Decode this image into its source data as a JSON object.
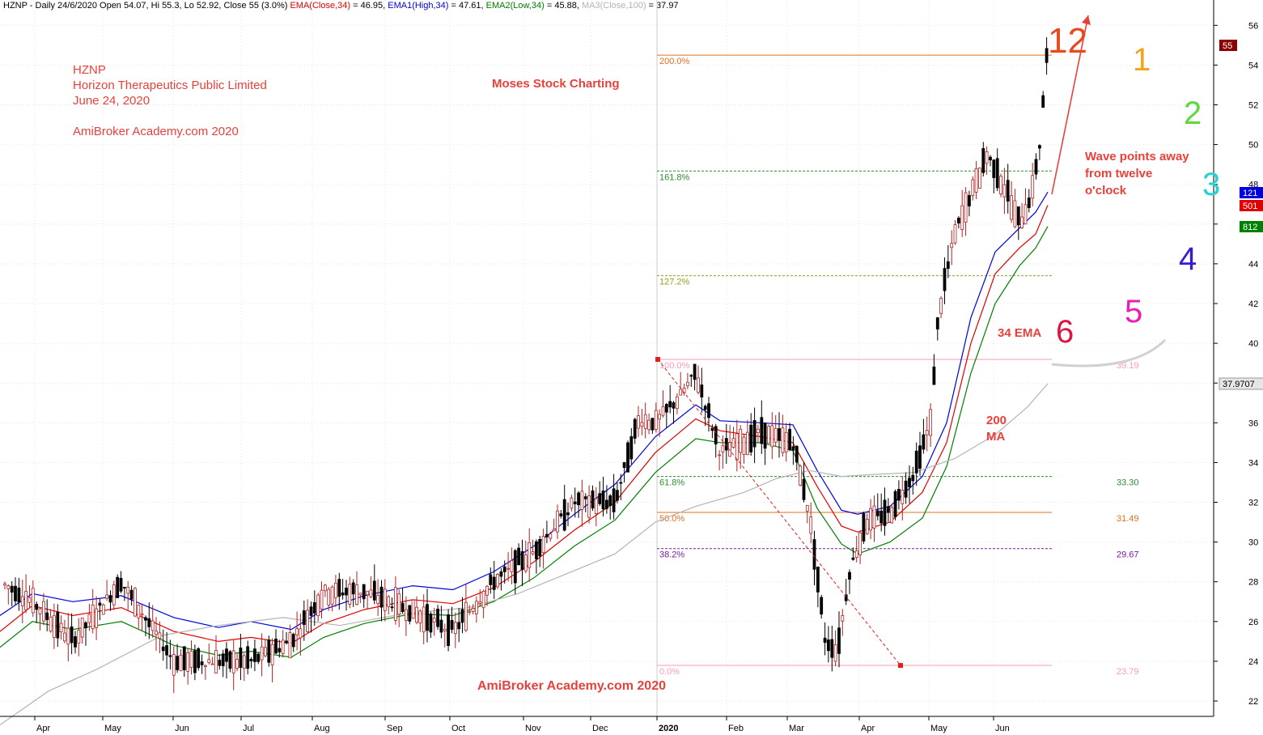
{
  "header": {
    "ticker_info": "HZNP - Daily 24/6/2020 Open 54.07, Hi 55.3, Lo 52.92, Close 55 (3.0%)",
    "ema_close_label": "EMA(Close,34)",
    "ema_close_value": "= 46.95,",
    "ema_high_label": "EMA1(High,34)",
    "ema_high_value": "= 47.61,",
    "ema_low_label": "EMA2(Low,34)",
    "ema_low_value": "= 45.88,",
    "ma_label": "MA3(Close,100)",
    "ma_value": "= 37.97"
  },
  "notes": {
    "ticker": "HZNP",
    "company": "Horizon Therapeutics Public Limited",
    "date": "June 24, 2020",
    "site_top": "AmiBroker Academy.com  2020",
    "brand": "Moses Stock Charting",
    "site_bottom": "AmiBroker Academy.com  2020",
    "wave_line1": "Wave points away",
    "wave_line2": "from twelve",
    "wave_line3": "o'clock",
    "ema_label": "34 EMA",
    "ma_line1": "200",
    "ma_line2": "MA"
  },
  "clock_numbers": [
    "12",
    "1",
    "2",
    "3",
    "4",
    "5",
    "6"
  ],
  "colors": {
    "ema_close": "#e00000",
    "ema_high": "#0000e0",
    "ema_low": "#008000",
    "ma": "#b4b4b4",
    "note_red": "#e8413c",
    "bull_candle": "#b22222",
    "bear_candle": "#000000"
  },
  "chart_data": {
    "type": "candlestick",
    "y_axis": {
      "range": [
        21,
        57
      ],
      "ticks": [
        22,
        24,
        26,
        28,
        30,
        32,
        34,
        36,
        38,
        40,
        42,
        44,
        46,
        48,
        50,
        52,
        54,
        56
      ],
      "position": "right"
    },
    "x_axis": {
      "ticks": [
        "Apr",
        "May",
        "Jun",
        "Jul",
        "Aug",
        "Sep",
        "Oct",
        "Nov",
        "Dec",
        "2020",
        "Feb",
        "Mar",
        "Apr",
        "May",
        "Jun"
      ]
    },
    "price_badges": [
      {
        "label": "55",
        "value": 55,
        "color": "#8b0000"
      },
      {
        "label": "37.9707",
        "value": 37.97,
        "color": "#e6e6e6"
      },
      {
        "label": "121",
        "value": 47.61,
        "color": "#0000e0"
      },
      {
        "label": "501",
        "value": 46.95,
        "color": "#e00000"
      },
      {
        "label": "812",
        "value": 45.88,
        "color": "#008000"
      }
    ],
    "fibonacci": [
      {
        "label": "200.0%",
        "value": 54.5,
        "color": "#e07020",
        "style": "solid"
      },
      {
        "label": "161.8%",
        "value": 48.67,
        "color": "#2e8b2e",
        "style": "dashed"
      },
      {
        "label": "127.2%",
        "value": 43.4,
        "color": "#9a9a20",
        "style": "dashed"
      },
      {
        "label": "100.0%",
        "value": 39.19,
        "right": "39.19",
        "color": "#ff9ab0",
        "style": "solid"
      },
      {
        "label": "61.8%",
        "value": 33.3,
        "right": "33.30",
        "color": "#2e8b2e",
        "style": "dashed"
      },
      {
        "label": "50.0%",
        "value": 31.49,
        "right": "31.49",
        "color": "#e07020",
        "style": "solid"
      },
      {
        "label": "38.2%",
        "value": 29.67,
        "right": "29.67",
        "color": "#7a1aa0",
        "style": "dashed"
      },
      {
        "label": "0.0%",
        "value": 23.79,
        "right": "23.79",
        "color": "#ff9ab0",
        "style": "solid"
      }
    ],
    "series": [
      {
        "name": "EMA(Close,34)",
        "type": "line",
        "color": "#e00000",
        "points": [
          [
            0,
            25.5
          ],
          [
            40,
            26.8
          ],
          [
            90,
            26.3
          ],
          [
            150,
            26.7
          ],
          [
            215,
            25.5
          ],
          [
            270,
            25.0
          ],
          [
            310,
            25.2
          ],
          [
            360,
            24.9
          ],
          [
            400,
            25.9
          ],
          [
            450,
            26.6
          ],
          [
            510,
            27.1
          ],
          [
            560,
            26.9
          ],
          [
            610,
            27.7
          ],
          [
            660,
            29.0
          ],
          [
            710,
            30.6
          ],
          [
            760,
            32.0
          ],
          [
            810,
            34.5
          ],
          [
            860,
            36.2
          ],
          [
            890,
            35.6
          ],
          [
            940,
            35.3
          ],
          [
            980,
            35.0
          ],
          [
            1010,
            32.8
          ],
          [
            1040,
            30.8
          ],
          [
            1060,
            30.5
          ],
          [
            1100,
            31.0
          ],
          [
            1140,
            32.5
          ],
          [
            1170,
            35.0
          ],
          [
            1200,
            40.0
          ],
          [
            1230,
            43.5
          ],
          [
            1260,
            44.8
          ],
          [
            1280,
            45.5
          ],
          [
            1295,
            46.95
          ]
        ]
      },
      {
        "name": "EMA1(High,34)",
        "type": "line",
        "color": "#0000e0",
        "points": [
          [
            0,
            26.3
          ],
          [
            40,
            27.4
          ],
          [
            90,
            27.0
          ],
          [
            150,
            27.3
          ],
          [
            215,
            26.2
          ],
          [
            270,
            25.7
          ],
          [
            310,
            26.0
          ],
          [
            360,
            25.6
          ],
          [
            400,
            26.6
          ],
          [
            450,
            27.3
          ],
          [
            510,
            27.8
          ],
          [
            560,
            27.6
          ],
          [
            610,
            28.5
          ],
          [
            660,
            29.8
          ],
          [
            710,
            31.4
          ],
          [
            760,
            32.9
          ],
          [
            810,
            35.3
          ],
          [
            860,
            36.9
          ],
          [
            890,
            36.1
          ],
          [
            940,
            36.0
          ],
          [
            980,
            35.9
          ],
          [
            1010,
            33.6
          ],
          [
            1040,
            31.6
          ],
          [
            1060,
            31.4
          ],
          [
            1100,
            31.8
          ],
          [
            1140,
            33.3
          ],
          [
            1170,
            36.0
          ],
          [
            1200,
            41.3
          ],
          [
            1230,
            44.6
          ],
          [
            1260,
            45.8
          ],
          [
            1280,
            46.6
          ],
          [
            1295,
            47.61
          ]
        ]
      },
      {
        "name": "EMA2(Low,34)",
        "type": "line",
        "color": "#008000",
        "points": [
          [
            0,
            24.7
          ],
          [
            40,
            26.0
          ],
          [
            90,
            25.6
          ],
          [
            150,
            26.0
          ],
          [
            215,
            24.8
          ],
          [
            270,
            24.3
          ],
          [
            310,
            24.5
          ],
          [
            360,
            24.2
          ],
          [
            400,
            25.2
          ],
          [
            450,
            25.9
          ],
          [
            510,
            26.4
          ],
          [
            560,
            26.3
          ],
          [
            610,
            27.0
          ],
          [
            660,
            28.2
          ],
          [
            710,
            29.8
          ],
          [
            760,
            31.1
          ],
          [
            810,
            33.5
          ],
          [
            860,
            35.2
          ],
          [
            890,
            35.0
          ],
          [
            940,
            35.0
          ],
          [
            980,
            34.6
          ],
          [
            1010,
            31.7
          ],
          [
            1040,
            29.9
          ],
          [
            1060,
            29.4
          ],
          [
            1100,
            30.0
          ],
          [
            1140,
            31.2
          ],
          [
            1170,
            33.8
          ],
          [
            1200,
            38.5
          ],
          [
            1230,
            42.0
          ],
          [
            1260,
            43.9
          ],
          [
            1280,
            44.8
          ],
          [
            1295,
            45.88
          ]
        ]
      },
      {
        "name": "MA3(Close,100)",
        "type": "line",
        "color": "#b4b4b4",
        "points": [
          [
            0,
            20.8
          ],
          [
            60,
            22.5
          ],
          [
            120,
            23.6
          ],
          [
            200,
            25.3
          ],
          [
            270,
            25.8
          ],
          [
            350,
            26.2
          ],
          [
            420,
            25.8
          ],
          [
            500,
            26.4
          ],
          [
            580,
            26.7
          ],
          [
            640,
            27.4
          ],
          [
            700,
            28.4
          ],
          [
            760,
            29.4
          ],
          [
            810,
            31.0
          ],
          [
            860,
            31.8
          ],
          [
            920,
            32.5
          ],
          [
            960,
            33.2
          ],
          [
            1000,
            33.6
          ],
          [
            1040,
            33.3
          ],
          [
            1080,
            33.4
          ],
          [
            1130,
            33.5
          ],
          [
            1180,
            34.2
          ],
          [
            1230,
            35.4
          ],
          [
            1270,
            36.8
          ],
          [
            1295,
            37.97
          ]
        ]
      }
    ],
    "candles_summary": {
      "segments": [
        [
          0,
          28
        ],
        [
          40,
          27
        ],
        [
          90,
          25
        ],
        [
          150,
          28
        ],
        [
          215,
          24
        ],
        [
          270,
          24
        ],
        [
          310,
          24
        ],
        [
          360,
          25
        ],
        [
          400,
          27.5
        ],
        [
          450,
          27.5
        ],
        [
          510,
          26.5
        ],
        [
          560,
          25.5
        ],
        [
          610,
          28
        ],
        [
          660,
          29.5
        ],
        [
          710,
          32
        ],
        [
          760,
          32
        ],
        [
          790,
          36.2
        ],
        [
          810,
          36
        ],
        [
          840,
          37.3
        ],
        [
          860,
          38.5
        ],
        [
          890,
          34.5
        ],
        [
          940,
          35.5
        ],
        [
          980,
          35
        ],
        [
          1000,
          31.5
        ],
        [
          1020,
          25
        ],
        [
          1035,
          24.5
        ],
        [
          1050,
          28.5
        ],
        [
          1070,
          31
        ],
        [
          1100,
          31.5
        ],
        [
          1130,
          33.5
        ],
        [
          1150,
          36
        ],
        [
          1160,
          41.5
        ],
        [
          1180,
          45.5
        ],
        [
          1200,
          47.5
        ],
        [
          1220,
          49.5
        ],
        [
          1240,
          48
        ],
        [
          1260,
          46
        ],
        [
          1275,
          47.5
        ],
        [
          1285,
          50
        ],
        [
          1295,
          55
        ]
      ]
    },
    "wave_arrow": {
      "from": [
        1300,
        47.5
      ],
      "to": [
        1345,
        56.5
      ]
    },
    "retrace_line": {
      "from": [
        813,
        39.19
      ],
      "to": [
        1113,
        23.79
      ]
    }
  }
}
